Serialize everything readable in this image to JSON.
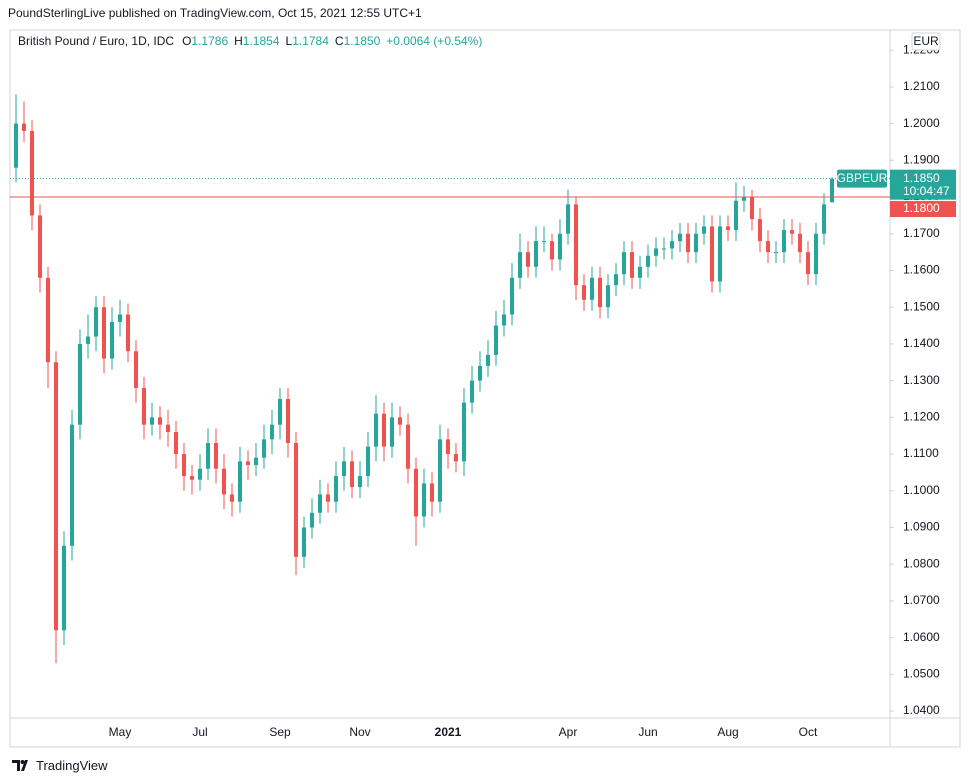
{
  "page_header": "PoundSterlingLive published on TradingView.com, Oct 15, 2021 12:55 UTC+1",
  "footer": {
    "brand": "TradingView"
  },
  "chart_data": {
    "type": "candlestick",
    "title": "British Pound / Euro, 1D, IDC",
    "legend_values": [
      {
        "label": "O",
        "value": "1.1786"
      },
      {
        "label": "H",
        "value": "1.1854"
      },
      {
        "label": "L",
        "value": "1.1784"
      },
      {
        "label": "C",
        "value": "1.1850"
      }
    ],
    "change": "+0.0064 (+0.54%)",
    "currency": "EUR",
    "up_color": "#26a69a",
    "down_color": "#ef5350",
    "categories": [
      null,
      null,
      null,
      null,
      null,
      null,
      null,
      null,
      null,
      null,
      null,
      null,
      null,
      "May",
      null,
      null,
      null,
      null,
      null,
      null,
      null,
      null,
      null,
      "Jul",
      null,
      null,
      null,
      null,
      null,
      null,
      null,
      null,
      null,
      "Sep",
      null,
      null,
      null,
      null,
      null,
      null,
      null,
      null,
      null,
      "Nov",
      null,
      null,
      null,
      null,
      null,
      null,
      null,
      null,
      null,
      null,
      "2021",
      null,
      null,
      null,
      null,
      null,
      null,
      null,
      null,
      null,
      null,
      null,
      null,
      null,
      null,
      "Apr",
      null,
      null,
      null,
      null,
      null,
      null,
      null,
      null,
      null,
      "Jun",
      null,
      null,
      null,
      null,
      null,
      null,
      null,
      null,
      null,
      "Aug",
      null,
      null,
      null,
      null,
      null,
      null,
      null,
      null,
      null,
      "Oct",
      null,
      null,
      null
    ],
    "open": [
      1.188,
      1.2,
      1.198,
      1.175,
      1.158,
      1.135,
      1.062,
      1.085,
      1.118,
      1.14,
      1.142,
      1.15,
      1.136,
      1.146,
      1.148,
      1.138,
      1.128,
      1.118,
      1.12,
      1.118,
      1.116,
      1.11,
      1.104,
      1.103,
      1.106,
      1.113,
      1.106,
      1.099,
      1.097,
      1.108,
      1.107,
      1.109,
      1.114,
      1.118,
      1.125,
      1.113,
      1.082,
      1.09,
      1.094,
      1.099,
      1.097,
      1.104,
      1.108,
      1.101,
      1.104,
      1.112,
      1.121,
      1.112,
      1.12,
      1.118,
      1.106,
      1.093,
      1.102,
      1.097,
      1.114,
      1.11,
      1.108,
      1.124,
      1.13,
      1.134,
      1.137,
      1.145,
      1.148,
      1.158,
      1.165,
      1.161,
      1.168,
      1.168,
      1.163,
      1.17,
      1.178,
      1.156,
      1.152,
      1.158,
      1.15,
      1.156,
      1.159,
      1.165,
      1.158,
      1.161,
      1.164,
      1.166,
      1.166,
      1.168,
      1.17,
      1.165,
      1.17,
      1.172,
      1.157,
      1.172,
      1.171,
      1.179,
      1.18,
      1.174,
      1.168,
      1.165,
      1.165,
      1.171,
      1.17,
      1.165,
      1.159,
      1.17,
      1.1786
    ],
    "high": [
      1.208,
      1.206,
      1.201,
      1.178,
      1.161,
      1.138,
      1.089,
      1.122,
      1.144,
      1.148,
      1.153,
      1.153,
      1.15,
      1.152,
      1.151,
      1.141,
      1.131,
      1.124,
      1.123,
      1.122,
      1.119,
      1.113,
      1.107,
      1.11,
      1.117,
      1.117,
      1.11,
      1.102,
      1.112,
      1.111,
      1.113,
      1.118,
      1.122,
      1.128,
      1.128,
      1.116,
      1.093,
      1.098,
      1.103,
      1.102,
      1.108,
      1.112,
      1.111,
      1.108,
      1.116,
      1.126,
      1.124,
      1.124,
      1.123,
      1.121,
      1.109,
      1.106,
      1.105,
      1.118,
      1.117,
      1.113,
      1.128,
      1.134,
      1.138,
      1.141,
      1.149,
      1.152,
      1.162,
      1.17,
      1.168,
      1.172,
      1.172,
      1.17,
      1.174,
      1.182,
      1.18,
      1.159,
      1.161,
      1.161,
      1.159,
      1.162,
      1.168,
      1.168,
      1.164,
      1.167,
      1.169,
      1.169,
      1.171,
      1.173,
      1.173,
      1.173,
      1.175,
      1.175,
      1.175,
      1.175,
      1.184,
      1.183,
      1.182,
      1.177,
      1.171,
      1.168,
      1.174,
      1.174,
      1.173,
      1.168,
      1.173,
      1.181,
      1.1854
    ],
    "low": [
      1.184,
      1.195,
      1.171,
      1.154,
      1.128,
      1.053,
      1.058,
      1.081,
      1.114,
      1.136,
      1.138,
      1.132,
      1.133,
      1.142,
      1.135,
      1.124,
      1.114,
      1.115,
      1.114,
      1.112,
      1.106,
      1.1,
      1.099,
      1.1,
      1.103,
      1.102,
      1.095,
      1.093,
      1.094,
      1.103,
      1.104,
      1.106,
      1.11,
      1.114,
      1.109,
      1.077,
      1.079,
      1.087,
      1.091,
      1.094,
      1.094,
      1.1,
      1.098,
      1.098,
      1.101,
      1.108,
      1.108,
      1.109,
      1.115,
      1.102,
      1.085,
      1.09,
      1.093,
      1.094,
      1.106,
      1.105,
      1.104,
      1.121,
      1.127,
      1.131,
      1.134,
      1.142,
      1.145,
      1.155,
      1.158,
      1.158,
      1.165,
      1.16,
      1.16,
      1.167,
      1.152,
      1.149,
      1.149,
      1.147,
      1.147,
      1.153,
      1.156,
      1.155,
      1.155,
      1.158,
      1.161,
      1.163,
      1.163,
      1.165,
      1.162,
      1.162,
      1.167,
      1.154,
      1.154,
      1.168,
      1.168,
      1.176,
      1.171,
      1.165,
      1.162,
      1.162,
      1.162,
      1.167,
      1.162,
      1.156,
      1.156,
      1.167,
      1.1784
    ],
    "close": [
      1.2,
      1.198,
      1.175,
      1.158,
      1.135,
      1.062,
      1.085,
      1.118,
      1.14,
      1.142,
      1.15,
      1.136,
      1.146,
      1.148,
      1.138,
      1.128,
      1.118,
      1.12,
      1.118,
      1.116,
      1.11,
      1.104,
      1.103,
      1.106,
      1.113,
      1.106,
      1.099,
      1.097,
      1.108,
      1.107,
      1.109,
      1.114,
      1.118,
      1.125,
      1.113,
      1.082,
      1.09,
      1.094,
      1.099,
      1.097,
      1.104,
      1.108,
      1.101,
      1.104,
      1.112,
      1.121,
      1.112,
      1.12,
      1.118,
      1.106,
      1.093,
      1.102,
      1.097,
      1.114,
      1.11,
      1.108,
      1.124,
      1.13,
      1.134,
      1.137,
      1.145,
      1.148,
      1.158,
      1.165,
      1.161,
      1.168,
      1.168,
      1.163,
      1.17,
      1.178,
      1.156,
      1.152,
      1.158,
      1.15,
      1.156,
      1.159,
      1.165,
      1.158,
      1.161,
      1.164,
      1.166,
      1.166,
      1.168,
      1.17,
      1.165,
      1.17,
      1.172,
      1.157,
      1.172,
      1.171,
      1.179,
      1.18,
      1.174,
      1.168,
      1.165,
      1.165,
      1.171,
      1.17,
      1.165,
      1.159,
      1.17,
      1.178,
      1.185
    ],
    "ylim": [
      1.0381,
      1.2255
    ],
    "yticks": [
      {
        "value": 1.22,
        "label": "1.2200"
      },
      {
        "value": 1.21,
        "label": "1.2100"
      },
      {
        "value": 1.2,
        "label": "1.2000"
      },
      {
        "value": 1.19,
        "label": "1.1900"
      },
      {
        "value": 1.18,
        "label": "1.1800"
      },
      {
        "value": 1.17,
        "label": "1.1700"
      },
      {
        "value": 1.16,
        "label": "1.1600"
      },
      {
        "value": 1.15,
        "label": "1.1500"
      },
      {
        "value": 1.14,
        "label": "1.1400"
      },
      {
        "value": 1.13,
        "label": "1.1300"
      },
      {
        "value": 1.12,
        "label": "1.1200"
      },
      {
        "value": 1.11,
        "label": "1.1100"
      },
      {
        "value": 1.1,
        "label": "1.1000"
      },
      {
        "value": 1.09,
        "label": "1.0900"
      },
      {
        "value": 1.08,
        "label": "1.0800"
      },
      {
        "value": 1.07,
        "label": "1.0700"
      },
      {
        "value": 1.06,
        "label": "1.0600"
      },
      {
        "value": 1.05,
        "label": "1.0500"
      },
      {
        "value": 1.04,
        "label": "1.0400"
      }
    ],
    "price_lines": [
      {
        "value": 1.185,
        "label": "1.1850",
        "name": "GBPEUR",
        "countdown": "10:04:47",
        "color": "#26a69a",
        "style": "dotted"
      },
      {
        "value": 1.18,
        "label": "1.1800",
        "color": "#ef5350",
        "style": "solid"
      }
    ]
  }
}
